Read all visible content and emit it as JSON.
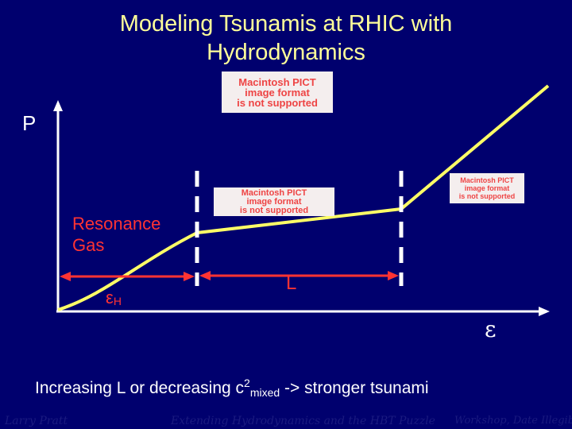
{
  "title": {
    "line1": "Modeling Tsunamis at RHIC with",
    "line2": "Hydrodynamics"
  },
  "placeholders": {
    "top": [
      "Macintosh PICT",
      "image format",
      "is not supported"
    ],
    "middle": [
      "Macintosh PICT",
      "image format",
      "is not supported"
    ],
    "right": [
      "Macintosh PICT",
      "image format",
      "is not supported"
    ]
  },
  "diagram": {
    "y_axis_label": "P",
    "x_axis_label": "ε",
    "region_label_line1": "Resonance",
    "region_label_line2": "Gas",
    "epsilon_h_symbol": "ε",
    "epsilon_h_subscript": "H",
    "latent_label": "L"
  },
  "bottom": {
    "text_before": "Increasing L or decreasing c",
    "superscript": "2",
    "subscript": "mixed",
    "text_after": " -> stronger tsunami"
  },
  "footer": {
    "left": "Larry Pratt",
    "center": "Extending Hydrodynamics and the HBT Puzzle",
    "right": "Workshop, Date Illegible"
  },
  "colors": {
    "background": "#00006e",
    "title": "#ffff99",
    "curve": "#ffff66",
    "accent": "#ff3333",
    "axes": "#ffffff"
  }
}
